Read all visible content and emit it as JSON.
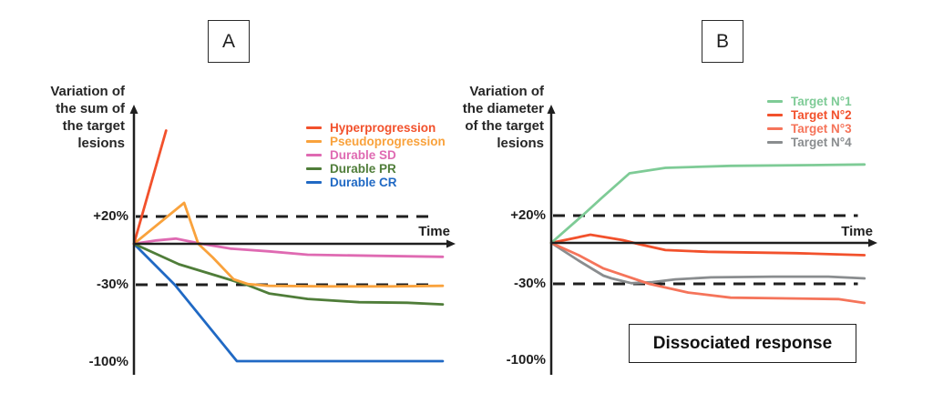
{
  "chart_data": [
    {
      "type": "line",
      "panel_label": "A",
      "ylabel": "Variation of the sum of the target lesions",
      "ylabel_lines": [
        "Variation of",
        "the sum of",
        "the target",
        "lesions"
      ],
      "xlabel": "Time",
      "x_range": [
        0,
        1
      ],
      "ylim": [
        -105,
        90
      ],
      "grid": false,
      "legend_position": "upper right",
      "yticks": [
        {
          "label": "+20%",
          "value": 20,
          "dashed": true
        },
        {
          "label": "-30%",
          "value": -30,
          "dashed": true
        },
        {
          "label": "-100%",
          "value": -100,
          "dashed": false
        }
      ],
      "series": [
        {
          "name": "Hyperprogression",
          "color": "#F2512C",
          "points": [
            [
              0,
              0
            ],
            [
              0.1,
              83
            ]
          ]
        },
        {
          "name": "Pseudoprogression",
          "color": "#F9A23C",
          "points": [
            [
              0,
              0
            ],
            [
              0.156,
              30
            ],
            [
              0.2,
              0
            ],
            [
              0.245,
              -10
            ],
            [
              0.31,
              -26
            ],
            [
              0.355,
              -29.5
            ],
            [
              0.42,
              -31
            ],
            [
              0.6,
              -31.5
            ],
            [
              0.8,
              -31.5
            ],
            [
              0.96,
              -31
            ]
          ]
        },
        {
          "name": "Durable SD",
          "color": "#DF6AB2",
          "points": [
            [
              0,
              0
            ],
            [
              0.07,
              2.5
            ],
            [
              0.13,
              3.8
            ],
            [
              0.21,
              0
            ],
            [
              0.3,
              -3.5
            ],
            [
              0.42,
              -5.5
            ],
            [
              0.54,
              -8
            ],
            [
              0.75,
              -8.8
            ],
            [
              0.96,
              -9.5
            ]
          ]
        },
        {
          "name": "Durable PR",
          "color": "#4F7D39",
          "points": [
            [
              0,
              0
            ],
            [
              0.14,
              -15
            ],
            [
              0.28,
              -25
            ],
            [
              0.35,
              -30
            ],
            [
              0.42,
              -38
            ],
            [
              0.54,
              -43
            ],
            [
              0.7,
              -46
            ],
            [
              0.85,
              -46.5
            ],
            [
              0.96,
              -48
            ]
          ]
        },
        {
          "name": "Durable CR",
          "color": "#2069C4",
          "points": [
            [
              0,
              0
            ],
            [
              0.127,
              -30
            ],
            [
              0.32,
              -100
            ],
            [
              0.96,
              -100
            ]
          ]
        }
      ]
    },
    {
      "type": "line",
      "panel_label": "B",
      "ylabel": "Variation of the diameter of the target lesions",
      "ylabel_lines": [
        "Variation of",
        "the diameter",
        "of the target",
        "lesions"
      ],
      "xlabel": "Time",
      "x_range": [
        0,
        1
      ],
      "ylim": [
        -105,
        90
      ],
      "grid": false,
      "legend_position": "upper right",
      "annotation": "Dissociated response",
      "yticks": [
        {
          "label": "+20%",
          "value": 20,
          "dashed": true
        },
        {
          "label": "-30%",
          "value": -30,
          "dashed": true
        },
        {
          "label": "-100%",
          "value": -100,
          "dashed": false
        }
      ],
      "series": [
        {
          "name": "Target N°1",
          "color": "#7ECB96",
          "points": [
            [
              0,
              0
            ],
            [
              0.1,
              21
            ],
            [
              0.155,
              33
            ],
            [
              0.24,
              51
            ],
            [
              0.35,
              55
            ],
            [
              0.55,
              56.5
            ],
            [
              0.8,
              57
            ],
            [
              0.96,
              57.5
            ]
          ]
        },
        {
          "name": "Target N°2",
          "color": "#F2512C",
          "points": [
            [
              0,
              0
            ],
            [
              0.12,
              6
            ],
            [
              0.22,
              2
            ],
            [
              0.27,
              -1
            ],
            [
              0.35,
              -5.3
            ],
            [
              0.48,
              -6.5
            ],
            [
              0.75,
              -7.5
            ],
            [
              0.96,
              -9
            ]
          ]
        },
        {
          "name": "Target N°3",
          "color": "#F5745A",
          "points": [
            [
              0,
              0
            ],
            [
              0.084,
              -9
            ],
            [
              0.16,
              -18.7
            ],
            [
              0.3,
              -30
            ],
            [
              0.42,
              -38
            ],
            [
              0.55,
              -42.7
            ],
            [
              0.72,
              -43.3
            ],
            [
              0.88,
              -44
            ],
            [
              0.96,
              -47.5
            ]
          ]
        },
        {
          "name": "Target N°4",
          "color": "#8A8D8F",
          "points": [
            [
              0,
              0
            ],
            [
              0.084,
              -13
            ],
            [
              0.16,
              -24
            ],
            [
              0.185,
              -26
            ],
            [
              0.246,
              -29.5
            ],
            [
              0.31,
              -28.7
            ],
            [
              0.38,
              -26.7
            ],
            [
              0.49,
              -25.3
            ],
            [
              0.68,
              -24.7
            ],
            [
              0.85,
              -24.7
            ],
            [
              0.96,
              -26
            ]
          ]
        }
      ]
    }
  ],
  "colors": {
    "axis": "#1f1f1f",
    "background": "#ffffff"
  }
}
